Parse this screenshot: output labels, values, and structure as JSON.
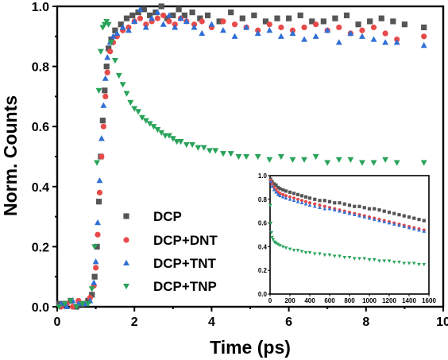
{
  "chart_data": [
    {
      "type": "scatter",
      "xlabel": "Time (ps)",
      "ylabel": "Norm. Counts",
      "xlim": [
        0,
        10
      ],
      "ylim": [
        0,
        1
      ],
      "xticks": [
        "0",
        "2",
        "4",
        "6",
        "8",
        "10"
      ],
      "yticks": [
        "0.0",
        "0.2",
        "0.4",
        "0.6",
        "0.8",
        "1.0"
      ],
      "legend_position": "bottom-left",
      "series": [
        {
          "name": "DCP",
          "color": "#555555",
          "marker": "square",
          "x": [
            0.05,
            0.2,
            0.35,
            0.5,
            0.65,
            0.8,
            0.9,
            0.97,
            1.03,
            1.08,
            1.13,
            1.18,
            1.23,
            1.28,
            1.33,
            1.4,
            1.5,
            1.65,
            1.8,
            1.95,
            2.1,
            2.25,
            2.4,
            2.55,
            2.7,
            2.85,
            3.0,
            3.15,
            3.3,
            3.5,
            3.7,
            3.9,
            4.2,
            4.5,
            4.8,
            5.1,
            5.4,
            5.7,
            6.0,
            6.3,
            6.6,
            6.9,
            7.2,
            7.5,
            7.8,
            8.1,
            8.4,
            8.7,
            9.0,
            9.5
          ],
          "y": [
            0.01,
            0.01,
            0.02,
            0.0,
            0.01,
            0.02,
            0.04,
            0.1,
            0.2,
            0.35,
            0.5,
            0.62,
            0.72,
            0.8,
            0.86,
            0.89,
            0.92,
            0.94,
            0.96,
            0.97,
            0.98,
            0.99,
            0.97,
            0.98,
            1.0,
            0.96,
            0.97,
            0.99,
            0.97,
            0.98,
            0.96,
            0.97,
            0.95,
            0.98,
            0.96,
            0.97,
            0.95,
            0.96,
            0.96,
            0.97,
            0.95,
            0.95,
            0.96,
            0.97,
            0.94,
            0.95,
            0.96,
            0.95,
            0.94,
            0.93
          ]
        },
        {
          "name": "DCP+DNT",
          "color": "#e84a4a",
          "marker": "circle",
          "x": [
            0.1,
            0.25,
            0.4,
            0.55,
            0.7,
            0.85,
            0.95,
            1.0,
            1.05,
            1.1,
            1.15,
            1.2,
            1.25,
            1.3,
            1.37,
            1.45,
            1.55,
            1.7,
            1.85,
            2.0,
            2.15,
            2.3,
            2.45,
            2.6,
            2.75,
            2.9,
            3.05,
            3.2,
            3.35,
            3.55,
            3.75,
            4.0,
            4.3,
            4.6,
            4.9,
            5.2,
            5.5,
            5.8,
            6.1,
            6.4,
            6.7,
            7.0,
            7.3,
            7.6,
            7.9,
            8.2,
            8.5,
            8.8,
            9.5
          ],
          "y": [
            0.0,
            0.01,
            0.0,
            0.02,
            0.01,
            0.03,
            0.07,
            0.13,
            0.24,
            0.38,
            0.5,
            0.6,
            0.7,
            0.78,
            0.85,
            0.88,
            0.9,
            0.92,
            0.93,
            0.95,
            0.96,
            0.94,
            0.95,
            0.96,
            0.97,
            0.95,
            0.94,
            0.96,
            0.95,
            0.94,
            0.95,
            0.93,
            0.95,
            0.94,
            0.93,
            0.92,
            0.94,
            0.93,
            0.92,
            0.93,
            0.94,
            0.92,
            0.93,
            0.91,
            0.92,
            0.93,
            0.91,
            0.89,
            0.9
          ]
        },
        {
          "name": "DCP+TNT",
          "color": "#2f6fd6",
          "marker": "triangle-up",
          "x": [
            0.1,
            0.25,
            0.4,
            0.55,
            0.7,
            0.85,
            0.95,
            1.0,
            1.05,
            1.1,
            1.15,
            1.2,
            1.25,
            1.3,
            1.37,
            1.45,
            1.55,
            1.7,
            1.85,
            2.0,
            2.15,
            2.3,
            2.45,
            2.6,
            2.75,
            2.9,
            3.05,
            3.2,
            3.35,
            3.55,
            3.75,
            4.0,
            4.3,
            4.6,
            4.9,
            5.2,
            5.5,
            5.8,
            6.1,
            6.4,
            6.7,
            7.0,
            7.3,
            7.6,
            7.9,
            8.2,
            8.5,
            8.8,
            9.5
          ],
          "y": [
            0.01,
            0.0,
            0.02,
            0.01,
            0.01,
            0.02,
            0.08,
            0.15,
            0.28,
            0.42,
            0.56,
            0.67,
            0.76,
            0.83,
            0.88,
            0.9,
            0.91,
            0.93,
            0.92,
            0.95,
            0.99,
            0.93,
            0.96,
            0.98,
            0.94,
            0.97,
            0.93,
            0.96,
            0.95,
            0.93,
            0.91,
            0.94,
            0.92,
            0.9,
            0.93,
            0.91,
            0.92,
            0.9,
            0.91,
            0.89,
            0.9,
            0.92,
            0.88,
            0.91,
            0.9,
            0.89,
            0.88,
            0.88,
            0.87
          ]
        },
        {
          "name": "DCP+TNP",
          "color": "#29a35a",
          "marker": "triangle-down",
          "x": [
            0.05,
            0.2,
            0.35,
            0.5,
            0.65,
            0.8,
            0.9,
            0.97,
            1.03,
            1.08,
            1.13,
            1.18,
            1.23,
            1.28,
            1.33,
            1.4,
            1.5,
            1.6,
            1.7,
            1.8,
            1.9,
            2.0,
            2.1,
            2.2,
            2.3,
            2.4,
            2.5,
            2.6,
            2.7,
            2.8,
            2.9,
            3.0,
            3.1,
            3.2,
            3.35,
            3.5,
            3.65,
            3.8,
            3.95,
            4.1,
            4.3,
            4.5,
            4.7,
            4.9,
            5.2,
            5.5,
            5.8,
            6.1,
            6.4,
            6.7,
            7.0,
            7.3,
            7.6,
            7.9,
            8.2,
            8.5,
            8.8,
            9.5
          ],
          "y": [
            0.0,
            0.01,
            0.02,
            0.0,
            0.01,
            0.01,
            0.06,
            0.2,
            0.48,
            0.72,
            0.85,
            0.93,
            0.94,
            0.95,
            0.94,
            0.88,
            0.82,
            0.77,
            0.74,
            0.71,
            0.68,
            0.66,
            0.65,
            0.63,
            0.62,
            0.61,
            0.6,
            0.59,
            0.58,
            0.57,
            0.57,
            0.56,
            0.55,
            0.55,
            0.54,
            0.54,
            0.53,
            0.53,
            0.52,
            0.52,
            0.51,
            0.51,
            0.5,
            0.5,
            0.5,
            0.49,
            0.5,
            0.49,
            0.49,
            0.5,
            0.48,
            0.49,
            0.49,
            0.48,
            0.48,
            0.49,
            0.48,
            0.48
          ]
        }
      ]
    },
    {
      "type": "scatter",
      "role": "inset",
      "xlim": [
        0,
        1600
      ],
      "ylim": [
        0,
        1
      ],
      "xticks": [
        "0",
        "200",
        "400",
        "600",
        "800",
        "1000",
        "1200",
        "1400",
        "1600"
      ],
      "yticks": [
        "0.0",
        "0.2",
        "0.4",
        "0.6",
        "0.8",
        "1.0"
      ],
      "series": [
        {
          "name": "DCP",
          "color": "#555555",
          "marker": "square",
          "x": [
            5,
            20,
            40,
            60,
            80,
            100,
            130,
            160,
            200,
            240,
            280,
            320,
            360,
            400,
            450,
            500,
            550,
            600,
            650,
            700,
            750,
            800,
            850,
            900,
            950,
            1000,
            1050,
            1100,
            1150,
            1200,
            1250,
            1300,
            1350,
            1400,
            1450,
            1500,
            1550
          ],
          "y": [
            0.97,
            0.95,
            0.93,
            0.92,
            0.9,
            0.89,
            0.88,
            0.87,
            0.86,
            0.85,
            0.84,
            0.83,
            0.82,
            0.81,
            0.8,
            0.79,
            0.79,
            0.78,
            0.77,
            0.77,
            0.76,
            0.75,
            0.74,
            0.74,
            0.73,
            0.72,
            0.72,
            0.71,
            0.7,
            0.69,
            0.68,
            0.67,
            0.66,
            0.65,
            0.64,
            0.63,
            0.62
          ]
        },
        {
          "name": "DCP+DNT",
          "color": "#e84a4a",
          "marker": "circle",
          "x": [
            5,
            20,
            40,
            60,
            80,
            100,
            130,
            160,
            200,
            240,
            280,
            320,
            360,
            400,
            450,
            500,
            550,
            600,
            650,
            700,
            750,
            800,
            850,
            900,
            950,
            1000,
            1050,
            1100,
            1150,
            1200,
            1250,
            1300,
            1350,
            1400,
            1450,
            1500,
            1550
          ],
          "y": [
            0.96,
            0.93,
            0.9,
            0.88,
            0.86,
            0.85,
            0.84,
            0.83,
            0.82,
            0.81,
            0.8,
            0.79,
            0.78,
            0.77,
            0.76,
            0.75,
            0.74,
            0.73,
            0.72,
            0.71,
            0.7,
            0.69,
            0.68,
            0.67,
            0.66,
            0.65,
            0.64,
            0.63,
            0.62,
            0.61,
            0.6,
            0.59,
            0.58,
            0.57,
            0.56,
            0.55,
            0.54
          ]
        },
        {
          "name": "DCP+TNT",
          "color": "#2f6fd6",
          "marker": "triangle-up",
          "x": [
            5,
            20,
            40,
            60,
            80,
            100,
            130,
            160,
            200,
            240,
            280,
            320,
            360,
            400,
            450,
            500,
            550,
            600,
            650,
            700,
            750,
            800,
            850,
            900,
            950,
            1000,
            1050,
            1100,
            1150,
            1200,
            1250,
            1300,
            1350,
            1400,
            1450,
            1500,
            1550
          ],
          "y": [
            0.95,
            0.91,
            0.88,
            0.86,
            0.84,
            0.83,
            0.82,
            0.81,
            0.8,
            0.79,
            0.78,
            0.77,
            0.76,
            0.75,
            0.74,
            0.73,
            0.72,
            0.72,
            0.71,
            0.7,
            0.69,
            0.68,
            0.67,
            0.66,
            0.65,
            0.64,
            0.63,
            0.62,
            0.61,
            0.6,
            0.59,
            0.58,
            0.57,
            0.56,
            0.55,
            0.54,
            0.53
          ]
        },
        {
          "name": "DCP+TNP",
          "color": "#29a35a",
          "marker": "triangle-down",
          "x": [
            3,
            8,
            14,
            20,
            30,
            45,
            60,
            80,
            100,
            130,
            160,
            200,
            240,
            280,
            320,
            360,
            400,
            450,
            500,
            550,
            600,
            650,
            700,
            750,
            800,
            850,
            900,
            950,
            1000,
            1050,
            1100,
            1150,
            1200,
            1250,
            1300,
            1350,
            1400,
            1450,
            1500,
            1550
          ],
          "y": [
            0.75,
            0.6,
            0.52,
            0.48,
            0.46,
            0.44,
            0.43,
            0.42,
            0.41,
            0.4,
            0.39,
            0.38,
            0.37,
            0.37,
            0.36,
            0.35,
            0.35,
            0.34,
            0.34,
            0.33,
            0.33,
            0.32,
            0.32,
            0.31,
            0.31,
            0.3,
            0.3,
            0.3,
            0.29,
            0.29,
            0.28,
            0.28,
            0.28,
            0.27,
            0.27,
            0.26,
            0.26,
            0.26,
            0.25,
            0.25
          ]
        }
      ]
    }
  ]
}
